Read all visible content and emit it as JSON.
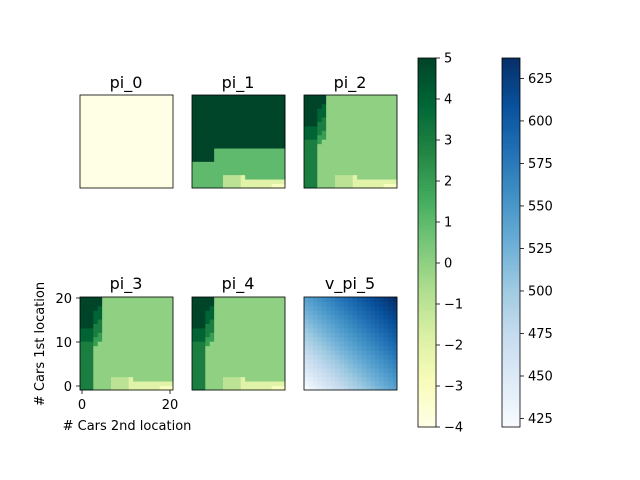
{
  "chart_data": [
    {
      "type": "heatmap",
      "title": "pi_0",
      "grid_size": 21,
      "colormap": "YlGn",
      "value_range": [
        -4,
        5
      ],
      "uniform_value": -4,
      "axes_visible": false
    },
    {
      "type": "heatmap",
      "title": "pi_1",
      "grid_size": 21,
      "colormap": "YlGn",
      "value_range": [
        -4,
        5
      ],
      "policy_shape": {
        "kind": "policy",
        "max_move": 5,
        "upper_region": 5,
        "lower_band": -1
      },
      "axes_visible": false
    },
    {
      "type": "heatmap",
      "title": "pi_2",
      "grid_size": 21,
      "colormap": "YlGn",
      "value_range": [
        -4,
        5
      ],
      "policy_shape": {
        "kind": "policy",
        "max_move": 5,
        "upper_region": 0,
        "lower_band": -1
      },
      "axes_visible": false
    },
    {
      "type": "heatmap",
      "title": "pi_3",
      "grid_size": 21,
      "colormap": "YlGn",
      "value_range": [
        -4,
        5
      ],
      "policy_shape": {
        "kind": "policy",
        "max_move": 5,
        "upper_region": 0,
        "lower_band": -1
      },
      "axes_visible": true,
      "xlabel": "# Cars 2nd location",
      "ylabel": "# Cars 1st location",
      "xticks": [
        0,
        20
      ],
      "yticks": [
        0,
        10,
        20
      ],
      "xlim": [
        0,
        20
      ],
      "ylim": [
        0,
        20
      ]
    },
    {
      "type": "heatmap",
      "title": "pi_4",
      "grid_size": 21,
      "colormap": "YlGn",
      "value_range": [
        -4,
        5
      ],
      "policy_shape": {
        "kind": "policy",
        "max_move": 5,
        "upper_region": 0,
        "lower_band": -1
      },
      "axes_visible": false
    },
    {
      "type": "heatmap",
      "title": "v_pi_5",
      "grid_size": 21,
      "colormap": "Blues",
      "value_range": [
        420,
        637
      ],
      "value_shape": {
        "kind": "value",
        "min": 420,
        "max": 637
      },
      "axes_visible": false
    }
  ],
  "colorbars": [
    {
      "colormap": "YlGn",
      "range": [
        -4,
        5
      ],
      "ticks": [
        "5",
        "4",
        "3",
        "2",
        "1",
        "0",
        "−1",
        "−2",
        "−3",
        "−4"
      ],
      "tick_values": [
        5,
        4,
        3,
        2,
        1,
        0,
        -1,
        -2,
        -3,
        -4
      ]
    },
    {
      "colormap": "Blues",
      "range": [
        420,
        637
      ],
      "ticks": [
        "625",
        "600",
        "575",
        "550",
        "525",
        "500",
        "475",
        "450",
        "425"
      ],
      "tick_values": [
        625,
        600,
        575,
        550,
        525,
        500,
        475,
        450,
        425
      ]
    }
  ],
  "colors": {
    "ylgn_stops": [
      "#ffffe5",
      "#f7fcb9",
      "#d9f0a3",
      "#addd8e",
      "#78c679",
      "#41ab5d",
      "#238443",
      "#006837",
      "#004529"
    ],
    "blues_stops": [
      "#f7fbff",
      "#deebf7",
      "#c6dbef",
      "#9ecae1",
      "#6baed6",
      "#4292c6",
      "#2171b5",
      "#08519c",
      "#08306b"
    ]
  }
}
